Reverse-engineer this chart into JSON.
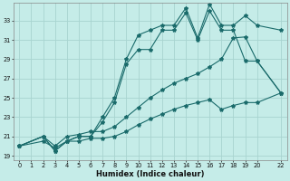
{
  "xlabel": "Humidex (Indice chaleur)",
  "bg_color": "#c5ece8",
  "grid_color": "#a8d4d0",
  "line_color": "#1a6b6b",
  "xlim": [
    -0.5,
    22.5
  ],
  "ylim": [
    18.5,
    34.8
  ],
  "xticks": [
    0,
    1,
    2,
    3,
    4,
    5,
    6,
    7,
    8,
    9,
    10,
    11,
    12,
    13,
    14,
    15,
    16,
    17,
    18,
    19,
    20,
    22
  ],
  "yticks": [
    19,
    21,
    23,
    25,
    27,
    29,
    31,
    33
  ],
  "series1_x": [
    0,
    2,
    3,
    4,
    5,
    6,
    7,
    8,
    9,
    10,
    11,
    12,
    13,
    14,
    15,
    16,
    17,
    18,
    19,
    20,
    22
  ],
  "series1_y": [
    20.0,
    21.0,
    19.5,
    20.5,
    21.0,
    21.0,
    23.0,
    25.0,
    29.0,
    31.5,
    32.0,
    32.5,
    32.5,
    34.3,
    31.2,
    34.7,
    32.5,
    32.5,
    33.5,
    32.5,
    32.0
  ],
  "series2_x": [
    0,
    2,
    3,
    4,
    5,
    6,
    7,
    8,
    9,
    10,
    11,
    12,
    13,
    14,
    15,
    16,
    17,
    18,
    19,
    20,
    22
  ],
  "series2_y": [
    20.0,
    21.0,
    19.5,
    20.5,
    21.0,
    21.0,
    22.5,
    24.5,
    28.5,
    30.0,
    30.0,
    32.0,
    32.0,
    33.8,
    31.0,
    34.0,
    32.0,
    32.0,
    28.8,
    28.8,
    25.5
  ],
  "series3_x": [
    0,
    2,
    3,
    4,
    5,
    6,
    7,
    8,
    9,
    10,
    11,
    12,
    13,
    14,
    15,
    16,
    17,
    18,
    19,
    20,
    22
  ],
  "series3_y": [
    20.0,
    21.0,
    20.0,
    21.0,
    21.2,
    21.5,
    21.5,
    22.0,
    23.0,
    24.0,
    25.0,
    25.8,
    26.5,
    27.0,
    27.5,
    28.2,
    29.0,
    31.2,
    31.3,
    28.8,
    25.5
  ],
  "series4_x": [
    0,
    2,
    3,
    4,
    5,
    6,
    7,
    8,
    9,
    10,
    11,
    12,
    13,
    14,
    15,
    16,
    17,
    18,
    19,
    20,
    22
  ],
  "series4_y": [
    20.0,
    20.5,
    19.8,
    20.5,
    20.5,
    20.8,
    20.8,
    21.0,
    21.5,
    22.2,
    22.8,
    23.3,
    23.8,
    24.2,
    24.5,
    24.8,
    23.8,
    24.2,
    24.5,
    24.5,
    25.5
  ]
}
